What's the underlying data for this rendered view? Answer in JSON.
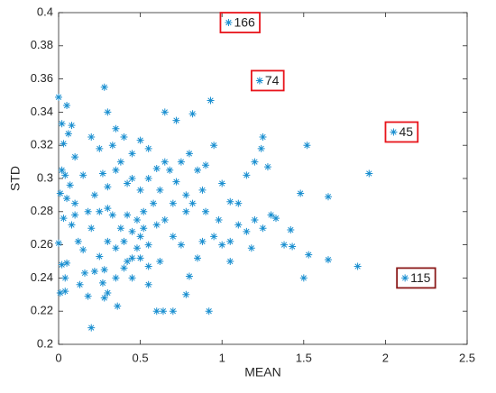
{
  "chart_data": {
    "type": "scatter",
    "xlabel": "MEAN",
    "ylabel": "STD",
    "xlim": [
      0,
      2.5
    ],
    "xticks": [
      0,
      0.5,
      1,
      1.5,
      2,
      2.5
    ],
    "ylim": [
      0.2,
      0.4
    ],
    "yticks": [
      0.2,
      0.22,
      0.24,
      0.26,
      0.28,
      0.3,
      0.32,
      0.34,
      0.36,
      0.38,
      0.4
    ],
    "color": "#1a8fd0",
    "x": [
      0,
      0.02,
      0.05,
      0.08,
      0.06,
      0.03,
      0.1,
      0.02,
      0.04,
      0.07,
      0.01,
      0.05,
      0.1,
      0.03,
      0.08,
      0.0,
      0.05,
      0.02,
      0.04,
      0.01,
      0.04,
      0.12,
      0.15,
      0.18,
      0.2,
      0.13,
      0.16,
      0.22,
      0.25,
      0.27,
      0.28,
      0.3,
      0.36,
      0.4,
      0.42,
      0.45,
      0.5,
      0.55,
      0.6,
      0.64,
      0.7,
      0.78,
      0.92,
      0.8,
      0.85,
      0.88,
      0.95,
      1.0,
      1.05,
      1.1,
      1.15,
      1.2,
      1.25,
      1.3,
      1.33,
      1.38,
      1.43,
      1.42,
      1.5,
      1.53,
      1.65,
      1.83,
      1.48,
      1.65,
      1.9,
      1.52,
      1.25,
      1.24,
      1.28,
      1.2,
      1.15,
      1.1,
      1.05,
      1.0,
      0.95,
      0.93,
      0.82,
      0.65,
      0.72,
      0.5,
      0.4,
      0.35,
      0.3,
      0.28,
      0.33,
      0.25,
      0.2,
      0.15,
      0.22,
      0.27,
      0.3,
      0.35,
      0.38,
      0.42,
      0.45,
      0.5,
      0.55,
      0.6,
      0.62,
      0.68,
      0.72,
      0.75,
      0.8,
      0.85,
      0.9,
      0.58,
      0.52,
      0.48,
      0.42,
      0.3,
      0.25,
      0.33,
      0.38,
      0.45,
      0.5,
      0.52,
      0.55,
      0.6,
      0.65,
      0.7,
      0.75,
      0.78,
      0.82,
      0.7,
      0.4,
      0.35,
      0.3,
      0.2,
      0.18,
      0.1,
      0.45,
      0.48,
      0.62,
      0.55,
      0.35,
      0.28,
      0.9,
      0.98,
      1.05,
      1.18,
      0.65,
      0.55,
      0.45,
      0.78,
      0.88
    ],
    "y": [
      0.349,
      0.333,
      0.344,
      0.332,
      0.327,
      0.321,
      0.313,
      0.305,
      0.302,
      0.296,
      0.291,
      0.288,
      0.285,
      0.276,
      0.272,
      0.261,
      0.249,
      0.248,
      0.24,
      0.231,
      0.232,
      0.262,
      0.257,
      0.229,
      0.21,
      0.236,
      0.243,
      0.244,
      0.253,
      0.237,
      0.228,
      0.231,
      0.223,
      0.246,
      0.25,
      0.24,
      0.252,
      0.236,
      0.22,
      0.22,
      0.22,
      0.23,
      0.22,
      0.241,
      0.252,
      0.262,
      0.265,
      0.26,
      0.262,
      0.272,
      0.268,
      0.275,
      0.27,
      0.278,
      0.276,
      0.26,
      0.259,
      0.269,
      0.24,
      0.254,
      0.251,
      0.247,
      0.291,
      0.289,
      0.303,
      0.32,
      0.325,
      0.318,
      0.307,
      0.31,
      0.302,
      0.285,
      0.286,
      0.297,
      0.32,
      0.347,
      0.339,
      0.34,
      0.335,
      0.323,
      0.325,
      0.33,
      0.34,
      0.355,
      0.32,
      0.318,
      0.325,
      0.302,
      0.29,
      0.303,
      0.295,
      0.305,
      0.31,
      0.297,
      0.3,
      0.293,
      0.3,
      0.306,
      0.293,
      0.305,
      0.298,
      0.31,
      0.315,
      0.305,
      0.308,
      0.285,
      0.28,
      0.275,
      0.278,
      0.282,
      0.28,
      0.278,
      0.27,
      0.268,
      0.265,
      0.27,
      0.26,
      0.272,
      0.275,
      0.265,
      0.26,
      0.28,
      0.285,
      0.285,
      0.262,
      0.258,
      0.262,
      0.27,
      0.28,
      0.278,
      0.252,
      0.258,
      0.25,
      0.247,
      0.24,
      0.245,
      0.28,
      0.275,
      0.25,
      0.258,
      0.31,
      0.318,
      0.315,
      0.29,
      0.293
    ],
    "annotations": [
      {
        "label": "166",
        "x": 1.04,
        "y": 0.394,
        "color": "#e8141b"
      },
      {
        "label": "74",
        "x": 1.23,
        "y": 0.359,
        "color": "#e8141b"
      },
      {
        "label": "45",
        "x": 2.05,
        "y": 0.328,
        "color": "#e8141b"
      },
      {
        "label": "115",
        "x": 2.12,
        "y": 0.24,
        "color": "#8b1a1a"
      }
    ]
  }
}
